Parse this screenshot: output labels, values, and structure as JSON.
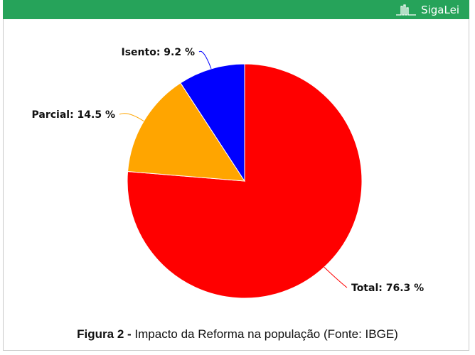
{
  "brand": {
    "name": "SigaLei",
    "logo_icon": "sigalei-logo-icon"
  },
  "caption": {
    "figure_label": "Figura 2 -",
    "text": "Impacto da Reforma na população (Fonte: IBGE)"
  },
  "chart_data": {
    "type": "pie",
    "slices": [
      {
        "label": "Total: 76.3 %",
        "name": "Total",
        "value": 76.3,
        "color": "#ff0000"
      },
      {
        "label": "Parcial: 14.5 %",
        "name": "Parcial",
        "value": 14.5,
        "color": "#ffa500"
      },
      {
        "label": "Isento: 9.2 %",
        "name": "Isento",
        "value": 9.2,
        "color": "#0000ff"
      }
    ],
    "start": "12 o'clock",
    "direction": "clockwise",
    "unit": "%"
  }
}
